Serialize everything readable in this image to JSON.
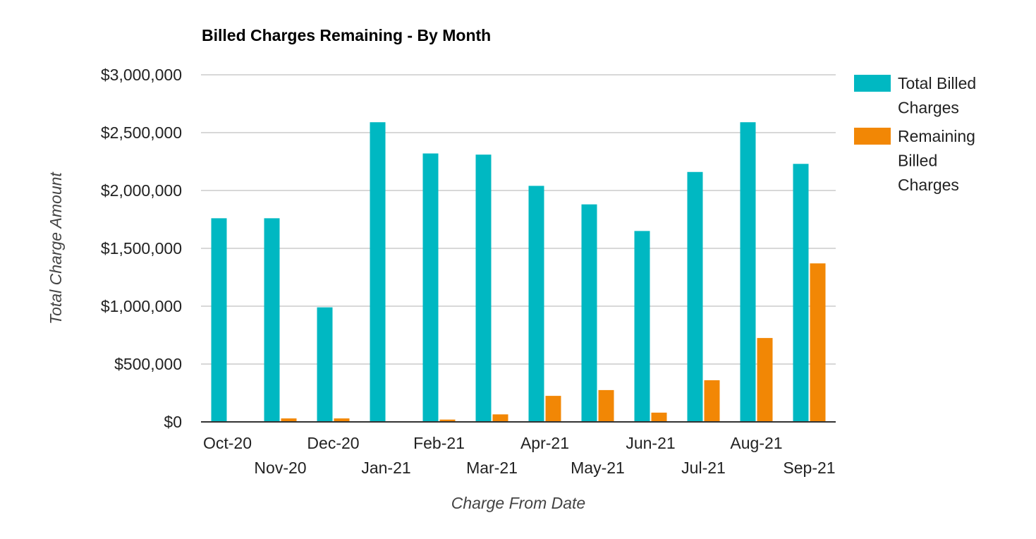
{
  "chart_data": {
    "type": "bar",
    "title": "Billed Charges Remaining - By Month",
    "xlabel": "Charge From Date",
    "ylabel": "Total Charge Amount",
    "ylim": [
      0,
      3000000
    ],
    "yticks": [
      0,
      500000,
      1000000,
      1500000,
      2000000,
      2500000,
      3000000
    ],
    "ytick_labels": [
      "$0",
      "$500,000",
      "$1,000,000",
      "$1,500,000",
      "$2,000,000",
      "$2,500,000",
      "$3,000,000"
    ],
    "categories": [
      "Oct-20",
      "Nov-20",
      "Dec-20",
      "Jan-21",
      "Feb-21",
      "Mar-21",
      "Apr-21",
      "May-21",
      "Jun-21",
      "Jul-21",
      "Aug-21",
      "Sep-21"
    ],
    "series": [
      {
        "name": "Total Billed Charges",
        "color": "#00b8c2",
        "values": [
          1760000,
          1760000,
          990000,
          2590000,
          2320000,
          2310000,
          2040000,
          1880000,
          1650000,
          2160000,
          2590000,
          2230000
        ]
      },
      {
        "name": "Remaining Billed Charges",
        "color": "#f28705",
        "values": [
          0,
          30000,
          30000,
          0,
          20000,
          65000,
          225000,
          275000,
          80000,
          360000,
          725000,
          1370000
        ]
      }
    ],
    "legend_position": "right",
    "grid": true
  }
}
